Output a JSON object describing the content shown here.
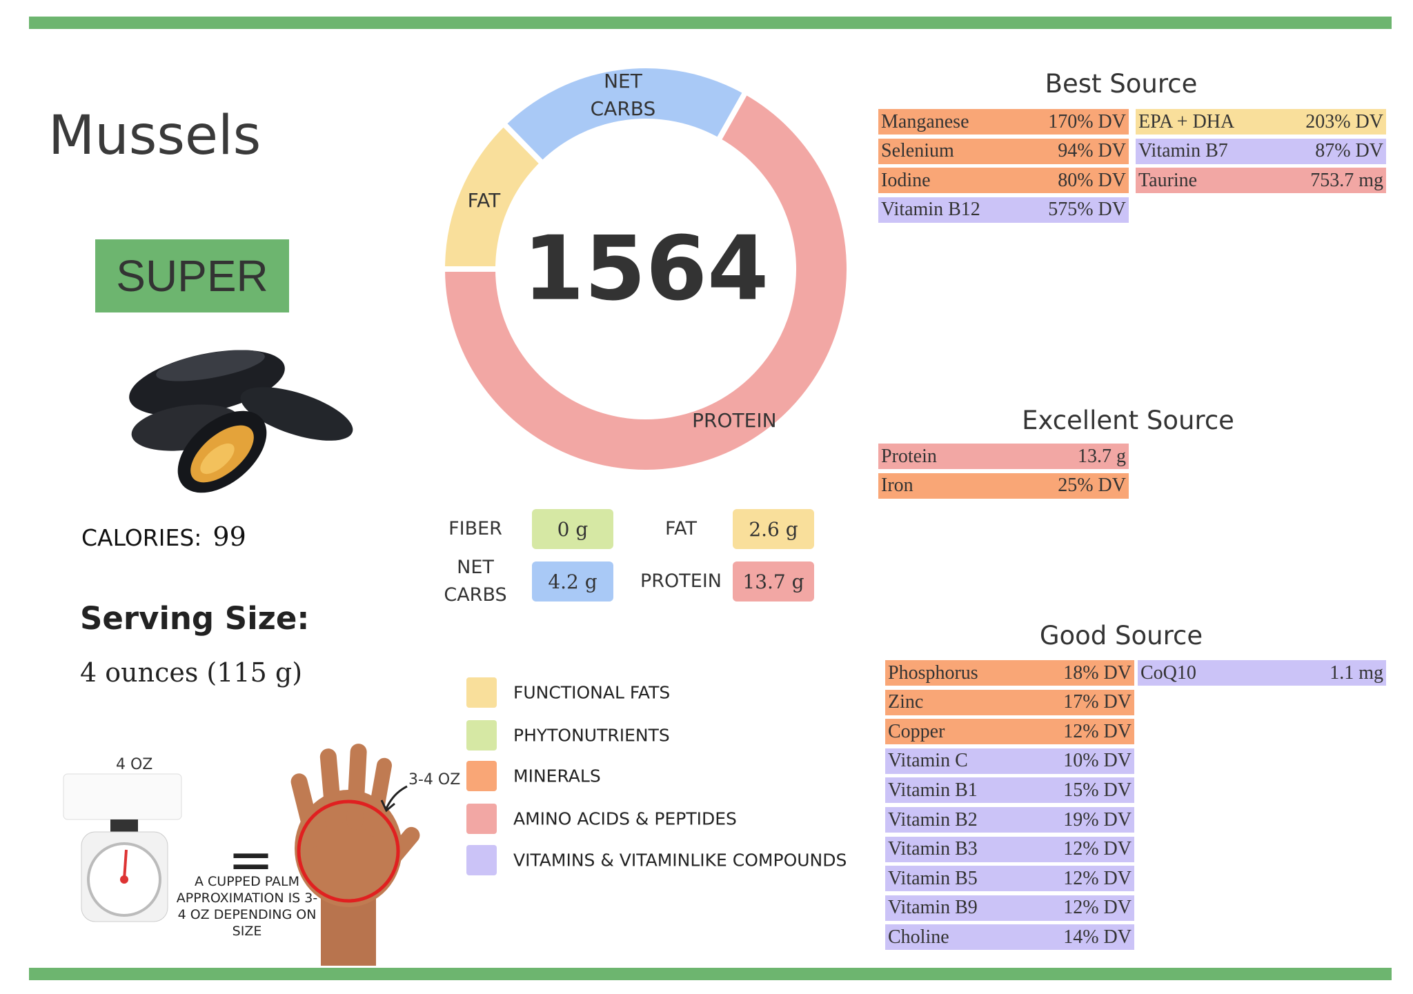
{
  "header": {
    "title": "Mussels",
    "rating": "SUPER"
  },
  "calories": {
    "label": "CALORIES:",
    "value": 99
  },
  "serving": {
    "label": "Serving Size:",
    "value": "4 ounces (115 g)"
  },
  "portion": {
    "scale_label": "4 OZ",
    "equals": "=",
    "caption": "A CUPPED PALM APPROXIMATION IS 3-4 OZ DEPENDING ON SIZE",
    "palm_label": "3-4 OZ"
  },
  "donut": {
    "center": 1564
  },
  "macros": [
    {
      "name": "FIBER",
      "grams": 0,
      "label": "0 g",
      "color": "#d6e8a4"
    },
    {
      "name": "FAT",
      "grams": 2.6,
      "label": "2.6 g",
      "color": "#f9df9b"
    },
    {
      "name": "NET CARBS",
      "grams": 4.2,
      "label": "4.2 g",
      "color": "#a9c9f6"
    },
    {
      "name": "PROTEIN",
      "grams": 13.7,
      "label": "13.7 g",
      "color": "#f2a7a4"
    }
  ],
  "legend": [
    {
      "label": "FUNCTIONAL FATS",
      "color": "#f9df9b"
    },
    {
      "label": "PHYTONUTRIENTS",
      "color": "#d6e8a4"
    },
    {
      "label": "MINERALS",
      "color": "#f9a676"
    },
    {
      "label": "AMINO ACIDS & PEPTIDES",
      "color": "#f2a7a4"
    },
    {
      "label": "VITAMINS & VITAMINLIKE COMPOUNDS",
      "color": "#cbc3f7"
    }
  ],
  "sources": [
    {
      "title": "Best Source",
      "columns": [
        [
          {
            "name": "Manganese",
            "amount": "170% DV",
            "color": "#f9a676"
          },
          {
            "name": "Selenium",
            "amount": "94% DV",
            "color": "#f9a676"
          },
          {
            "name": "Iodine",
            "amount": "80% DV",
            "color": "#f9a676"
          },
          {
            "name": "Vitamin B12",
            "amount": "575% DV",
            "color": "#cbc3f7"
          }
        ],
        [
          {
            "name": "EPA + DHA",
            "amount": "203% DV",
            "color": "#f9df9b"
          },
          {
            "name": "Vitamin B7",
            "amount": "87% DV",
            "color": "#cbc3f7"
          },
          {
            "name": "Taurine",
            "amount": "753.7 mg",
            "color": "#f2a7a4"
          }
        ]
      ]
    },
    {
      "title": "Excellent Source",
      "columns": [
        [
          {
            "name": "Protein",
            "amount": "13.7 g",
            "color": "#f2a7a4"
          },
          {
            "name": "Iron",
            "amount": "25% DV",
            "color": "#f9a676"
          }
        ]
      ]
    },
    {
      "title": "Good Source",
      "columns": [
        [
          {
            "name": "Phosphorus",
            "amount": "18% DV",
            "color": "#f9a676"
          },
          {
            "name": "Zinc",
            "amount": "17% DV",
            "color": "#f9a676"
          },
          {
            "name": "Copper",
            "amount": "12% DV",
            "color": "#f9a676"
          },
          {
            "name": "Vitamin C",
            "amount": "10% DV",
            "color": "#cbc3f7"
          },
          {
            "name": "Vitamin B1",
            "amount": "15% DV",
            "color": "#cbc3f7"
          },
          {
            "name": "Vitamin B2",
            "amount": "19% DV",
            "color": "#cbc3f7"
          },
          {
            "name": "Vitamin B3",
            "amount": "12% DV",
            "color": "#cbc3f7"
          },
          {
            "name": "Vitamin B5",
            "amount": "12% DV",
            "color": "#cbc3f7"
          },
          {
            "name": "Vitamin B9",
            "amount": "12% DV",
            "color": "#cbc3f7"
          },
          {
            "name": "Choline",
            "amount": "14% DV",
            "color": "#cbc3f7"
          }
        ],
        [
          {
            "name": "CoQ10",
            "amount": "1.1 mg",
            "color": "#cbc3f7"
          }
        ]
      ]
    }
  ]
}
